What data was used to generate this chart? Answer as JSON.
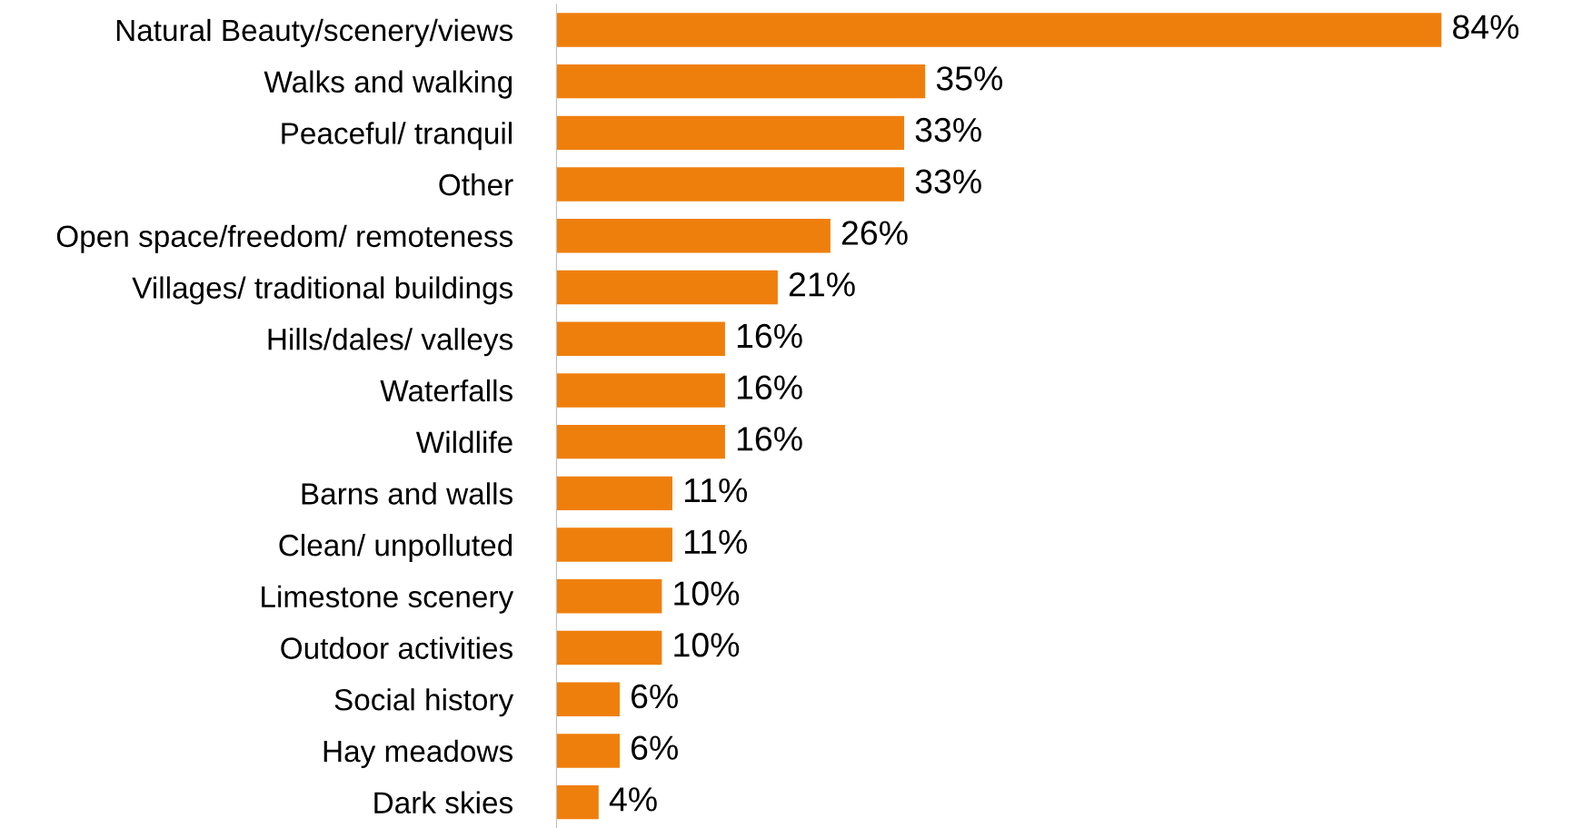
{
  "chart_data": {
    "type": "bar",
    "orientation": "horizontal",
    "categories": [
      "Natural Beauty/scenery/views",
      "Walks and walking",
      "Peaceful/ tranquil",
      "Other",
      "Open space/freedom/ remoteness",
      "Villages/ traditional buildings",
      "Hills/dales/ valleys",
      "Waterfalls",
      "Wildlife",
      "Barns and walls",
      "Clean/ unpolluted",
      "Limestone scenery",
      "Outdoor activities",
      "Social history",
      "Hay meadows",
      "Dark skies"
    ],
    "values": [
      84,
      35,
      33,
      33,
      26,
      21,
      16,
      16,
      16,
      11,
      11,
      10,
      10,
      6,
      6,
      4
    ],
    "value_labels": [
      "84%",
      "35%",
      "33%",
      "33%",
      "26%",
      "21%",
      "16%",
      "16%",
      "16%",
      "11%",
      "11%",
      "10%",
      "10%",
      "6%",
      "6%",
      "4%"
    ],
    "color": "#ef7f0c",
    "grid": false,
    "legend": false
  }
}
